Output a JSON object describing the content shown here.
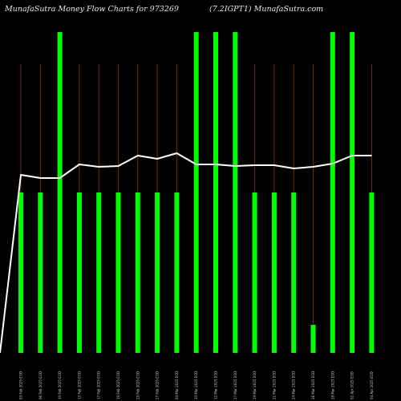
{
  "title_left": "MunafaSutra  Money Flow  Charts for 973269",
  "title_right": "(7.2IGPT1) MunafaSutra.com",
  "chart_data": {
    "type": "bar",
    "title": "MunafaSutra  Money Flow  Charts for 973269 (7.2IGPT1) MunafaSutra.com",
    "categories": [
      "03 Feb 2025",
      "06 Feb 2025",
      "10 Feb 2025",
      "13 Feb 2025",
      "17 Feb 2025",
      "19 Feb 2025",
      "25 Feb 2025",
      "27 Feb 2025",
      "04 Mar 2025",
      "10 Mar 2025",
      "12 Mar 2025",
      "17 Mar 2025",
      "19 Mar 2025",
      "21 Mar 2025",
      "24 Mar 2025",
      "26 Mar 2025",
      "28 Mar 2025",
      "02 Apr 2025",
      "04 Apr 2025"
    ],
    "tick_labels": [
      "03 Feb 2025 EOD",
      "06 Feb 2025 EOD",
      "10 Feb 2025 EOD",
      "13 Feb 2025 EOD",
      "17 Feb 2025 EOD",
      "19 Feb 2025 EOD",
      "25 Feb 2025 EOD",
      "27 Feb 2025 EOD",
      "04 Mar 2025 EOD",
      "10 Mar 2025 EOD",
      "12 Mar 2025 EOD",
      "17 Mar 2025 EOD",
      "19 Mar 2025 EOD",
      "21 Mar 2025 EOD",
      "24 Mar 2025 EOD",
      "26 Mar 2025 EOD",
      "28 Mar 2025 EOD",
      "02 Apr 2025 EOD",
      "04 Apr 2025 EOD"
    ],
    "bar_values": [
      200,
      200,
      400,
      200,
      200,
      200,
      200,
      200,
      200,
      400,
      400,
      400,
      200,
      200,
      200,
      35,
      400,
      400,
      200
    ],
    "bar_color": "#00ff00",
    "line_values": [
      222,
      218,
      218,
      235,
      232,
      233,
      246,
      242,
      249,
      235,
      235,
      233,
      234,
      234,
      230,
      232,
      236,
      246,
      246
    ],
    "line_start": 0,
    "line_color": "#ffffff",
    "vline_color": "#8b3a00",
    "ylim": [
      0,
      400
    ],
    "grid": false,
    "legend": "none"
  }
}
